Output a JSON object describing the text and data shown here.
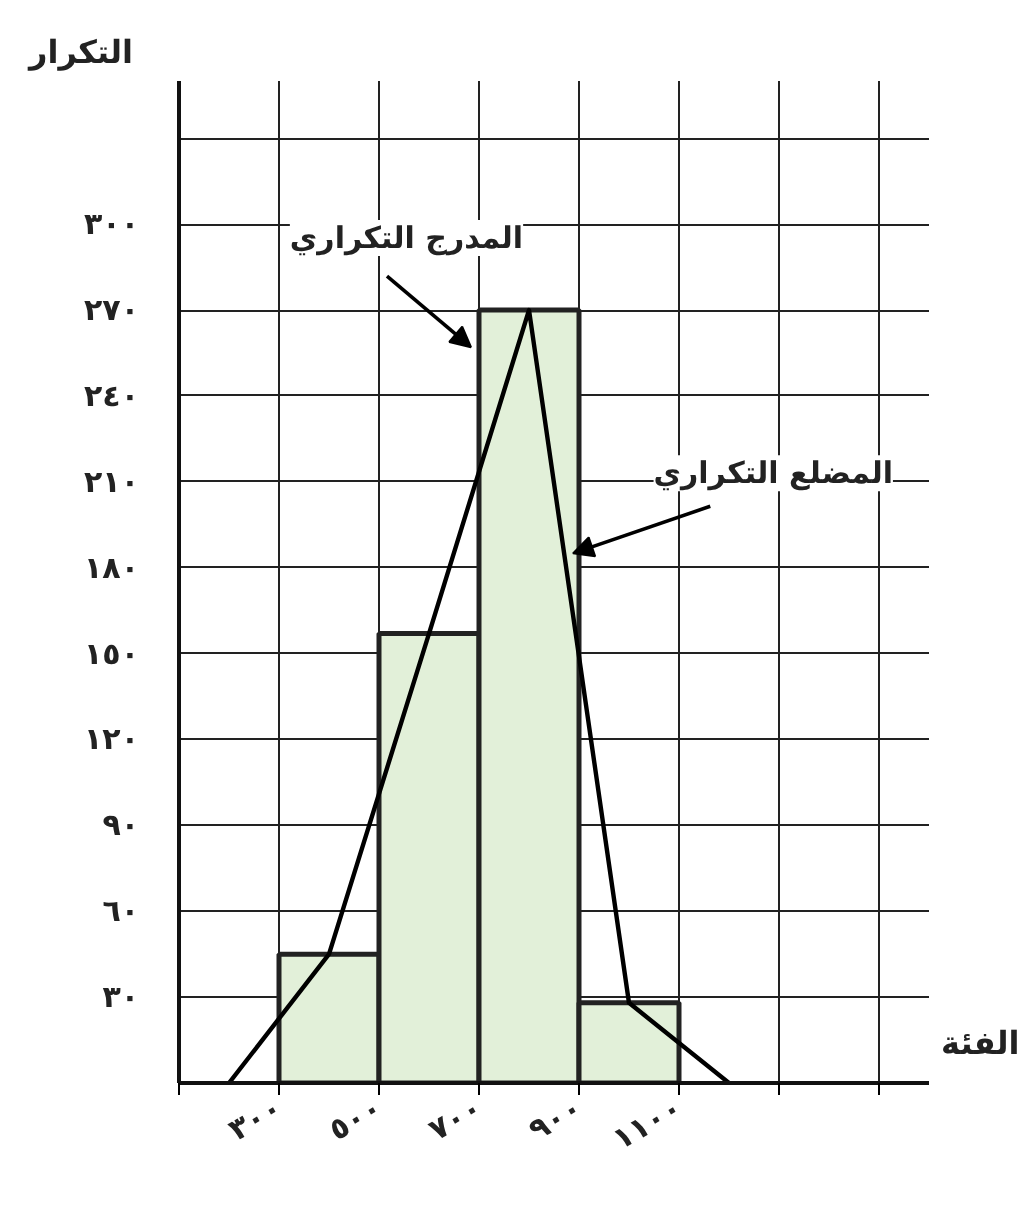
{
  "chart_data": {
    "type": "histogram",
    "xlabel": "الفئة",
    "ylabel": "التكرار",
    "bins": [
      300,
      500,
      700,
      900,
      1100
    ],
    "values": [
      45,
      157,
      270,
      28
    ],
    "color": "#e2f0d9",
    "series": [
      {
        "type": "line",
        "color": "#000000",
        "x": [
          200,
          400,
          600,
          800,
          1000,
          1200
        ],
        "values": [
          0,
          45,
          157,
          270,
          28,
          0
        ]
      }
    ],
    "xlim": [
      100,
      1600
    ],
    "ylim": [
      0,
      350
    ],
    "xticks": [
      {
        "value": 100,
        "label": null
      },
      {
        "value": 300,
        "label": "٣٠٠"
      },
      {
        "value": 500,
        "label": "٥٠٠"
      },
      {
        "value": 700,
        "label": "٧٠٠"
      },
      {
        "value": 900,
        "label": "٩٠٠"
      },
      {
        "value": 1100,
        "label": "١١٠٠"
      },
      {
        "value": 1300,
        "label": null
      },
      {
        "value": 1500,
        "label": null
      }
    ],
    "yticks": [
      {
        "value": 30,
        "label": "٣٠"
      },
      {
        "value": 60,
        "label": "٦٠"
      },
      {
        "value": 90,
        "label": "٩٠"
      },
      {
        "value": 120,
        "label": "١٢٠"
      },
      {
        "value": 150,
        "label": "١٥٠"
      },
      {
        "value": 180,
        "label": "١٨٠"
      },
      {
        "value": 210,
        "label": "٢١٠"
      },
      {
        "value": 240,
        "label": "٢٤٠"
      },
      {
        "value": 270,
        "label": "٢٧٠"
      },
      {
        "value": 300,
        "label": "٣٠٠"
      },
      {
        "value": 330,
        "label": null
      }
    ],
    "grid": true,
    "annotations": [
      {
        "text": "المدرج التكراري",
        "x": 684,
        "y": 257
      },
      {
        "text": "المضلع التكراري",
        "x": 888,
        "y": 185
      }
    ]
  }
}
